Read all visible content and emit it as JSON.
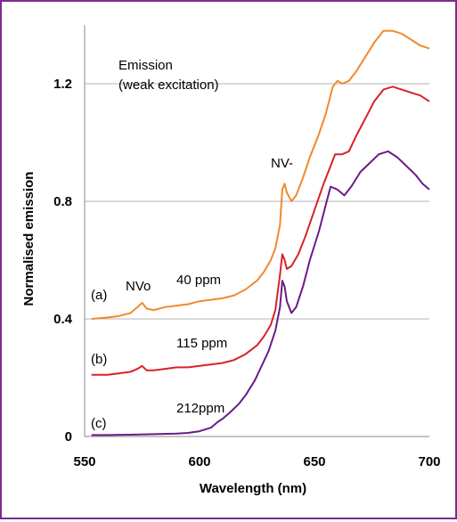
{
  "chart_data": {
    "type": "line",
    "xlabel": "Wavelength (nm)",
    "ylabel": "Normalised emission",
    "xlim": [
      550,
      700
    ],
    "ylim": [
      0,
      1.4
    ],
    "xticks": [
      550,
      600,
      650,
      700
    ],
    "yticks": [
      0,
      0.4,
      0.8,
      1.2
    ],
    "xtick_labels": [
      "550",
      "600",
      "650",
      "700"
    ],
    "ytick_labels": [
      "0",
      "0.4",
      "0.8",
      "1.2"
    ],
    "grid": "horizontal",
    "series": [
      {
        "color": "#f08a2e",
        "points": [
          [
            553,
            0.4
          ],
          [
            560,
            0.405
          ],
          [
            565,
            0.41
          ],
          [
            570,
            0.42
          ],
          [
            573,
            0.44
          ],
          [
            575,
            0.455
          ],
          [
            577,
            0.435
          ],
          [
            580,
            0.43
          ],
          [
            585,
            0.44
          ],
          [
            590,
            0.445
          ],
          [
            595,
            0.45
          ],
          [
            600,
            0.46
          ],
          [
            605,
            0.465
          ],
          [
            610,
            0.47
          ],
          [
            615,
            0.48
          ],
          [
            620,
            0.5
          ],
          [
            625,
            0.53
          ],
          [
            628,
            0.56
          ],
          [
            631,
            0.6
          ],
          [
            633,
            0.64
          ],
          [
            635,
            0.72
          ],
          [
            636,
            0.84
          ],
          [
            637,
            0.86
          ],
          [
            638,
            0.83
          ],
          [
            640,
            0.8
          ],
          [
            642,
            0.82
          ],
          [
            645,
            0.88
          ],
          [
            648,
            0.95
          ],
          [
            652,
            1.03
          ],
          [
            655,
            1.1
          ],
          [
            658,
            1.19
          ],
          [
            660,
            1.21
          ],
          [
            662,
            1.2
          ],
          [
            665,
            1.21
          ],
          [
            668,
            1.24
          ],
          [
            672,
            1.29
          ],
          [
            676,
            1.34
          ],
          [
            680,
            1.38
          ],
          [
            684,
            1.38
          ],
          [
            688,
            1.37
          ],
          [
            692,
            1.35
          ],
          [
            696,
            1.33
          ],
          [
            700,
            1.32
          ]
        ]
      },
      {
        "color": "#d8222a",
        "points": [
          [
            553,
            0.21
          ],
          [
            560,
            0.21
          ],
          [
            565,
            0.215
          ],
          [
            570,
            0.22
          ],
          [
            573,
            0.23
          ],
          [
            575,
            0.24
          ],
          [
            577,
            0.225
          ],
          [
            580,
            0.225
          ],
          [
            585,
            0.23
          ],
          [
            590,
            0.235
          ],
          [
            595,
            0.235
          ],
          [
            600,
            0.24
          ],
          [
            605,
            0.245
          ],
          [
            610,
            0.25
          ],
          [
            615,
            0.26
          ],
          [
            620,
            0.28
          ],
          [
            625,
            0.31
          ],
          [
            628,
            0.34
          ],
          [
            631,
            0.38
          ],
          [
            633,
            0.43
          ],
          [
            635,
            0.55
          ],
          [
            636,
            0.62
          ],
          [
            637,
            0.6
          ],
          [
            638,
            0.57
          ],
          [
            640,
            0.58
          ],
          [
            643,
            0.62
          ],
          [
            646,
            0.68
          ],
          [
            650,
            0.77
          ],
          [
            654,
            0.86
          ],
          [
            657,
            0.92
          ],
          [
            659,
            0.96
          ],
          [
            662,
            0.96
          ],
          [
            665,
            0.97
          ],
          [
            668,
            1.02
          ],
          [
            672,
            1.08
          ],
          [
            676,
            1.14
          ],
          [
            680,
            1.18
          ],
          [
            684,
            1.19
          ],
          [
            688,
            1.18
          ],
          [
            692,
            1.17
          ],
          [
            696,
            1.16
          ],
          [
            700,
            1.14
          ]
        ]
      },
      {
        "color": "#6a1b88",
        "points": [
          [
            553,
            0.005
          ],
          [
            560,
            0.005
          ],
          [
            570,
            0.006
          ],
          [
            580,
            0.008
          ],
          [
            590,
            0.01
          ],
          [
            595,
            0.012
          ],
          [
            600,
            0.018
          ],
          [
            605,
            0.03
          ],
          [
            608,
            0.05
          ],
          [
            610,
            0.06
          ],
          [
            613,
            0.08
          ],
          [
            617,
            0.11
          ],
          [
            620,
            0.14
          ],
          [
            624,
            0.19
          ],
          [
            627,
            0.24
          ],
          [
            630,
            0.29
          ],
          [
            633,
            0.36
          ],
          [
            635,
            0.44
          ],
          [
            636,
            0.53
          ],
          [
            637,
            0.51
          ],
          [
            638,
            0.46
          ],
          [
            640,
            0.42
          ],
          [
            642,
            0.44
          ],
          [
            645,
            0.51
          ],
          [
            648,
            0.6
          ],
          [
            652,
            0.7
          ],
          [
            655,
            0.79
          ],
          [
            657,
            0.85
          ],
          [
            660,
            0.84
          ],
          [
            663,
            0.82
          ],
          [
            666,
            0.85
          ],
          [
            670,
            0.9
          ],
          [
            674,
            0.93
          ],
          [
            678,
            0.96
          ],
          [
            682,
            0.97
          ],
          [
            686,
            0.95
          ],
          [
            690,
            0.92
          ],
          [
            694,
            0.89
          ],
          [
            697,
            0.86
          ],
          [
            700,
            0.84
          ]
        ]
      }
    ],
    "annotations": {
      "emission": "Emission",
      "excitation": "(weak excitation)",
      "nv_minus": "NV-",
      "nvo": "NVo",
      "label_a": "(a)",
      "label_b": "(b)",
      "label_c": "(c)",
      "ppm_40": "40 ppm",
      "ppm_115": "115 ppm",
      "ppm_212": "212ppm"
    }
  }
}
